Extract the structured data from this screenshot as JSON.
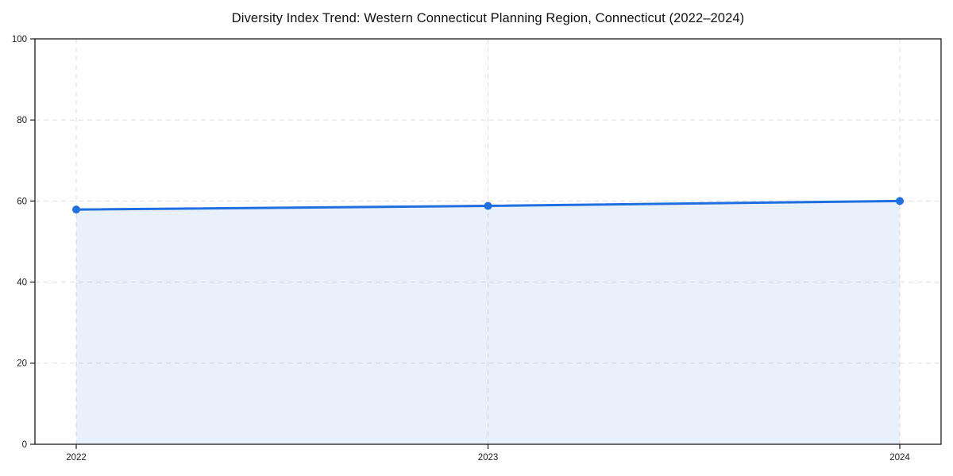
{
  "page": {
    "background": "#ffffff"
  },
  "chart_data": {
    "type": "area",
    "title": "Diversity Index Trend: Western Connecticut Planning Region, Connecticut (2022–2024)",
    "x": [
      "2022",
      "2023",
      "2024"
    ],
    "series": [
      {
        "name": "Diversity Index",
        "values": [
          57.9,
          58.8,
          60.0
        ]
      }
    ],
    "xlabel": "",
    "ylabel": "",
    "ylim": [
      0,
      100
    ],
    "y_ticks": [
      0,
      20,
      40,
      60,
      80,
      100
    ],
    "grid": {
      "shown": true,
      "style": "dashed",
      "axes": "both"
    },
    "legend": "none",
    "colors": {
      "line": "#1f6fe0",
      "marker": "#1f6fe0",
      "area_fill_rgba": "rgba(31,111,224,0.10)",
      "gridline": "#dedede",
      "spine": "#1a1a1a",
      "tick_label": "#1a1a1a",
      "title": "#111111"
    }
  }
}
